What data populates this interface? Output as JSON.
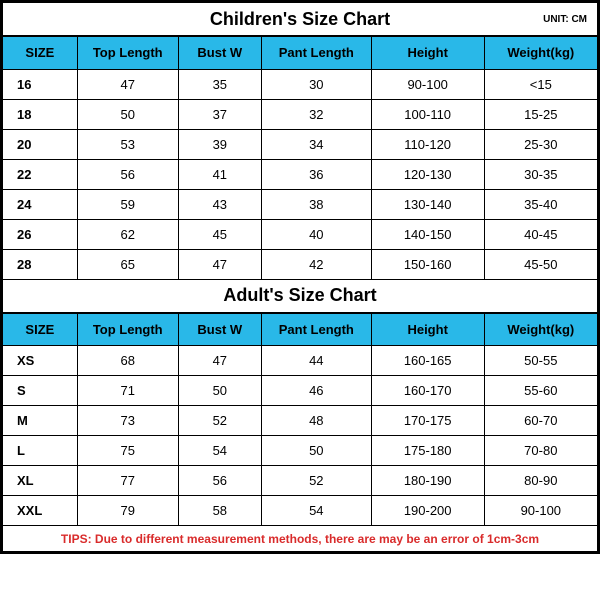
{
  "unit_label": "UNIT: CM",
  "columns": [
    "SIZE",
    "Top Length",
    "Bust W",
    "Pant Length",
    "Height",
    "Weight(kg)"
  ],
  "children": {
    "title": "Children's Size Chart",
    "rows": [
      [
        "16",
        "47",
        "35",
        "30",
        "90-100",
        "<15"
      ],
      [
        "18",
        "50",
        "37",
        "32",
        "100-110",
        "15-25"
      ],
      [
        "20",
        "53",
        "39",
        "34",
        "110-120",
        "25-30"
      ],
      [
        "22",
        "56",
        "41",
        "36",
        "120-130",
        "30-35"
      ],
      [
        "24",
        "59",
        "43",
        "38",
        "130-140",
        "35-40"
      ],
      [
        "26",
        "62",
        "45",
        "40",
        "140-150",
        "40-45"
      ],
      [
        "28",
        "65",
        "47",
        "42",
        "150-160",
        "45-50"
      ]
    ]
  },
  "adult": {
    "title": "Adult's Size Chart",
    "rows": [
      [
        "XS",
        "68",
        "47",
        "44",
        "160-165",
        "50-55"
      ],
      [
        "S",
        "71",
        "50",
        "46",
        "160-170",
        "55-60"
      ],
      [
        "M",
        "73",
        "52",
        "48",
        "170-175",
        "60-70"
      ],
      [
        "L",
        "75",
        "54",
        "50",
        "175-180",
        "70-80"
      ],
      [
        "XL",
        "77",
        "56",
        "52",
        "180-190",
        "80-90"
      ],
      [
        "XXL",
        "79",
        "58",
        "54",
        "190-200",
        "90-100"
      ]
    ]
  },
  "tips": "TIPS: Due to different measurement methods, there are may be an error of 1cm-3cm",
  "colors": {
    "header_bg": "#29b8e8",
    "border": "#000000",
    "tips_text": "#d92b2b",
    "background": "#ffffff"
  }
}
